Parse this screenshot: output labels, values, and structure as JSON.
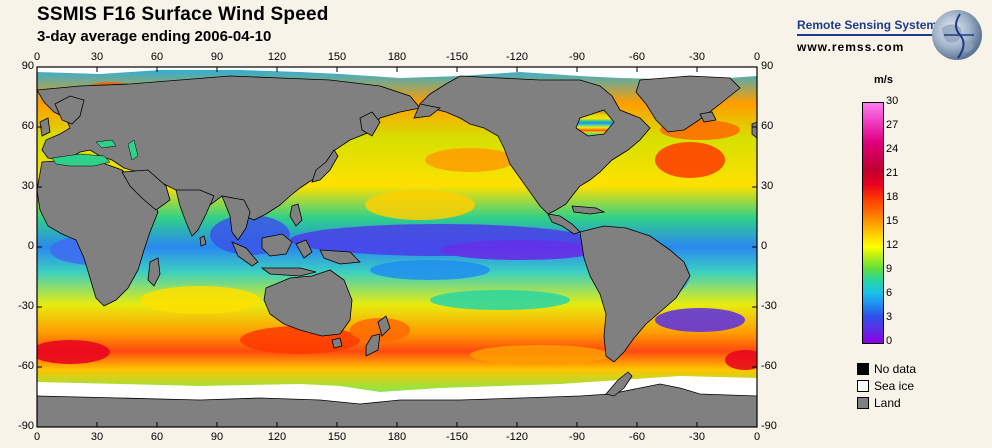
{
  "header": {
    "title": "SSMIS F16 Surface Wind Speed",
    "subtitle": "3-day average ending 2006-04-10"
  },
  "brand": {
    "name": "Remote Sensing Systems",
    "url": "www.remss.com"
  },
  "map": {
    "lon_ticks": [
      "0",
      "30",
      "60",
      "90",
      "120",
      "150",
      "180",
      "-150",
      "-120",
      "-90",
      "-60",
      "-30",
      "0"
    ],
    "lat_ticks": [
      "90",
      "60",
      "30",
      "0",
      "-30",
      "-60",
      "-90"
    ]
  },
  "colorbar": {
    "unit": "m/s",
    "ticks": [
      "30",
      "27",
      "24",
      "21",
      "18",
      "15",
      "12",
      "9",
      "6",
      "3",
      "0"
    ],
    "range": [
      0,
      30
    ]
  },
  "legend": [
    {
      "label": "No data",
      "color": "#000000"
    },
    {
      "label": "Sea ice",
      "color": "#ffffff"
    },
    {
      "label": "Land",
      "color": "#808080"
    }
  ],
  "colors": {
    "land": "#808080",
    "sea_ice": "#ffffff",
    "frame": "#000000",
    "background": "#f7f3e9"
  }
}
